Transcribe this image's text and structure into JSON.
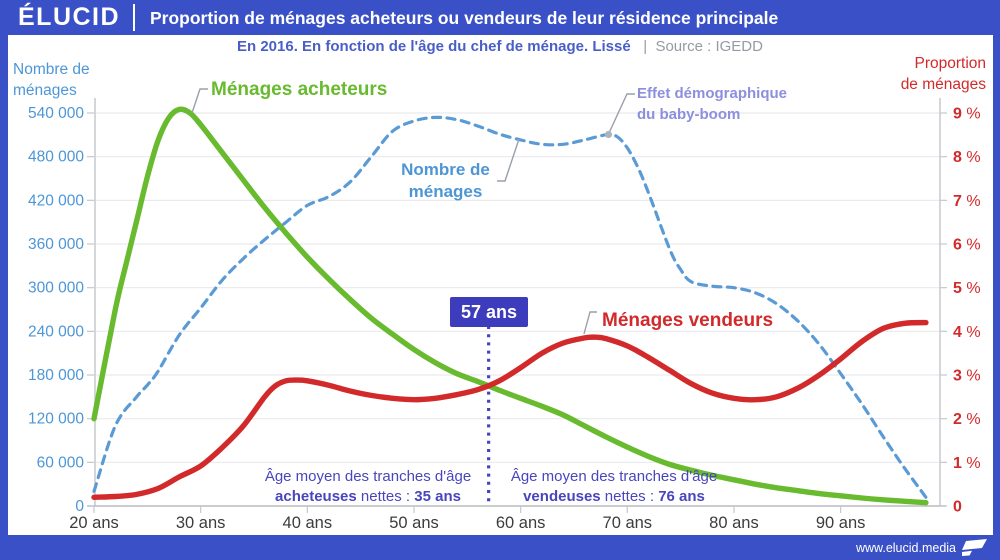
{
  "header": {
    "brand": "ÉLUCID",
    "title": "Proportion de ménages acheteurs ou vendeurs de leur résidence principale"
  },
  "subtitle": {
    "text": "En 2016. En fonction de l'âge du chef de ménage. Lissé",
    "separator": "|",
    "source": "Source : IGEDD"
  },
  "footer": {
    "url": "www.elucid.media",
    "flag_color": "#ffffff"
  },
  "labels": {
    "buyers_curve": "Ménages acheteurs",
    "sellers_curve": "Ménages vendeurs",
    "households_line1": "Nombre de",
    "households_line2": "ménages",
    "babyboom_line1": "Effet démographique",
    "babyboom_line2": "du baby-boom",
    "marker": "57 ans",
    "buyers_note": {
      "line1": "Âge moyen des tranches d'âge",
      "bold1": "acheteuses",
      "mid": " nettes : ",
      "bold2": "35 ans"
    },
    "sellers_note": {
      "line1": "Âge moyen des tranches d'âge",
      "bold1": "vendeuses",
      "mid": " nettes : ",
      "bold2": "76 ans"
    }
  },
  "colors": {
    "header_blue": "#3a50c7",
    "buyers_green": "#68ba2e",
    "sellers_red": "#d22a2a",
    "households_blue": "#5b9bd5",
    "left_axis_text": "#4d96d6",
    "right_axis_text": "#d22a2a",
    "marker_indigo": "#3d3cbc",
    "note_indigo": "#4945bd",
    "babyboom_purple": "#8b8fdd"
  },
  "chart_data": {
    "type": "line",
    "title": "Proportion de ménages acheteurs ou vendeurs de leur résidence principale",
    "x_axis": {
      "unit": "ans",
      "tick_values": [
        20,
        30,
        40,
        50,
        60,
        70,
        80,
        90
      ],
      "tick_labels": [
        "20 ans",
        "30 ans",
        "40 ans",
        "50 ans",
        "60 ans",
        "70 ans",
        "80 ans",
        "90 ans"
      ],
      "range": [
        20,
        98.5
      ]
    },
    "left_axis": {
      "title_line1": "Nombre de",
      "title_line2": "ménages",
      "tick_values": [
        0,
        60000,
        120000,
        180000,
        240000,
        300000,
        360000,
        420000,
        480000,
        540000
      ],
      "tick_labels": [
        "0",
        "60 000",
        "120 000",
        "180 000",
        "240 000",
        "300 000",
        "360 000",
        "420 000",
        "480 000",
        "540 000"
      ],
      "range": [
        0,
        560000
      ]
    },
    "right_axis": {
      "title_line1": "Proportion",
      "title_line2": "de ménages",
      "tick_values": [
        0,
        1,
        2,
        3,
        4,
        5,
        6,
        7,
        8,
        9
      ],
      "tick_labels": [
        "0",
        "1 %",
        "2 %",
        "3 %",
        "4 %",
        "5 %",
        "6 %",
        "7 %",
        "8 %",
        "9 %"
      ],
      "range": [
        0,
        9.35
      ]
    },
    "marker": {
      "x": 57,
      "label": "57 ans"
    },
    "series": [
      {
        "name": "Nombre de ménages",
        "color": "#5b9bd5",
        "style": "dashed",
        "axis": "left",
        "points": [
          [
            20,
            20000
          ],
          [
            22,
            110000
          ],
          [
            24,
            150000
          ],
          [
            25,
            166000
          ],
          [
            26,
            185000
          ],
          [
            28,
            235000
          ],
          [
            30,
            272000
          ],
          [
            32,
            310000
          ],
          [
            34,
            340000
          ],
          [
            36,
            366000
          ],
          [
            38,
            390000
          ],
          [
            40,
            413000
          ],
          [
            42,
            425000
          ],
          [
            44,
            445000
          ],
          [
            46,
            480000
          ],
          [
            48,
            515000
          ],
          [
            50,
            529000
          ],
          [
            52,
            534000
          ],
          [
            54,
            531000
          ],
          [
            56,
            522000
          ],
          [
            58,
            511000
          ],
          [
            60,
            503000
          ],
          [
            62,
            497000
          ],
          [
            64,
            497000
          ],
          [
            66,
            503000
          ],
          [
            68,
            510000
          ],
          [
            69,
            508000
          ],
          [
            70,
            492000
          ],
          [
            71,
            465000
          ],
          [
            72,
            430000
          ],
          [
            74,
            352000
          ],
          [
            75,
            325000
          ],
          [
            76,
            308000
          ],
          [
            78,
            302000
          ],
          [
            80,
            300000
          ],
          [
            82,
            293000
          ],
          [
            84,
            278000
          ],
          [
            86,
            254000
          ],
          [
            88,
            222000
          ],
          [
            90,
            182000
          ],
          [
            92,
            140000
          ],
          [
            94,
            95000
          ],
          [
            96,
            52000
          ],
          [
            98,
            12000
          ]
        ]
      },
      {
        "name": "Ménages acheteurs",
        "color": "#68ba2e",
        "style": "solid",
        "axis": "left",
        "points": [
          [
            20,
            120000
          ],
          [
            22,
            270000
          ],
          [
            23,
            332000
          ],
          [
            24,
            392000
          ],
          [
            25,
            452000
          ],
          [
            26,
            502000
          ],
          [
            27,
            533000
          ],
          [
            28,
            545000
          ],
          [
            29,
            540000
          ],
          [
            30,
            524000
          ],
          [
            32,
            486000
          ],
          [
            34,
            448000
          ],
          [
            36,
            410000
          ],
          [
            38,
            375000
          ],
          [
            40,
            342000
          ],
          [
            42,
            312000
          ],
          [
            44,
            284000
          ],
          [
            46,
            258000
          ],
          [
            48,
            236000
          ],
          [
            50,
            215000
          ],
          [
            52,
            197000
          ],
          [
            54,
            182000
          ],
          [
            56,
            171000
          ],
          [
            58,
            159000
          ],
          [
            60,
            148000
          ],
          [
            62,
            137000
          ],
          [
            64,
            125000
          ],
          [
            66,
            110000
          ],
          [
            68,
            95000
          ],
          [
            70,
            81000
          ],
          [
            72,
            68000
          ],
          [
            74,
            57000
          ],
          [
            76,
            49000
          ],
          [
            78,
            42000
          ],
          [
            80,
            36000
          ],
          [
            82,
            30000
          ],
          [
            84,
            25000
          ],
          [
            86,
            21000
          ],
          [
            88,
            17000
          ],
          [
            90,
            14000
          ],
          [
            92,
            11000
          ],
          [
            94,
            8500
          ],
          [
            96,
            6500
          ],
          [
            98,
            4500
          ]
        ]
      },
      {
        "name": "Ménages vendeurs",
        "color": "#d22a2a",
        "style": "solid",
        "axis": "left",
        "points": [
          [
            20,
            12000
          ],
          [
            22,
            13000
          ],
          [
            24,
            16000
          ],
          [
            26,
            24000
          ],
          [
            28,
            40000
          ],
          [
            30,
            55000
          ],
          [
            32,
            80000
          ],
          [
            34,
            110000
          ],
          [
            36,
            150000
          ],
          [
            37,
            165000
          ],
          [
            38,
            172000
          ],
          [
            39,
            173000
          ],
          [
            40,
            172000
          ],
          [
            42,
            166000
          ],
          [
            44,
            158000
          ],
          [
            46,
            152000
          ],
          [
            48,
            148000
          ],
          [
            50,
            146000
          ],
          [
            52,
            148000
          ],
          [
            54,
            153000
          ],
          [
            56,
            160000
          ],
          [
            58,
            172000
          ],
          [
            60,
            190000
          ],
          [
            62,
            210000
          ],
          [
            64,
            224000
          ],
          [
            66,
            231000
          ],
          [
            67,
            232000
          ],
          [
            68,
            230000
          ],
          [
            70,
            220000
          ],
          [
            72,
            204000
          ],
          [
            74,
            186000
          ],
          [
            76,
            168000
          ],
          [
            78,
            155000
          ],
          [
            80,
            148000
          ],
          [
            82,
            146000
          ],
          [
            84,
            150000
          ],
          [
            86,
            162000
          ],
          [
            88,
            180000
          ],
          [
            90,
            202000
          ],
          [
            92,
            226000
          ],
          [
            94,
            244000
          ],
          [
            96,
            251000
          ],
          [
            98,
            252000
          ]
        ]
      }
    ],
    "scale_note_visible": false,
    "grid": true,
    "legend_position": "inline-annotations"
  }
}
